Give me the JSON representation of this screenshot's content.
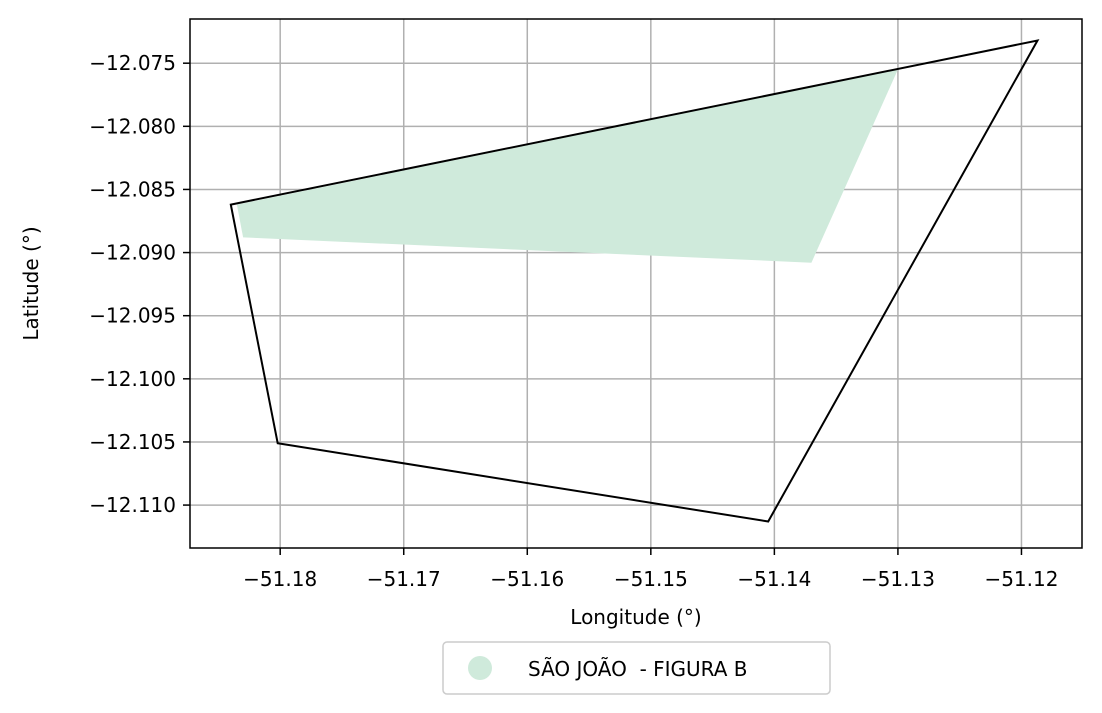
{
  "chart_data": {
    "type": "area",
    "title": "",
    "xlabel": "Longitude (°)",
    "ylabel": "Latitude (°)",
    "xlim": [
      -51.1873,
      -51.1151
    ],
    "ylim": [
      -12.1134,
      -12.0715
    ],
    "grid": true,
    "legend": {
      "placement": "bottom-center",
      "entries": [
        {
          "label": "SÃO JOÃO  - FIGURA B",
          "color": "#cfeadb",
          "marker": "circle"
        }
      ]
    },
    "x_ticks": [
      {
        "value": -51.18,
        "label": "−51.18"
      },
      {
        "value": -51.17,
        "label": "−51.17"
      },
      {
        "value": -51.16,
        "label": "−51.16"
      },
      {
        "value": -51.15,
        "label": "−51.15"
      },
      {
        "value": -51.14,
        "label": "−51.14"
      },
      {
        "value": -51.13,
        "label": "−51.13"
      },
      {
        "value": -51.12,
        "label": "−51.12"
      }
    ],
    "y_ticks": [
      {
        "value": -12.075,
        "label": "−12.075"
      },
      {
        "value": -12.08,
        "label": "−12.080"
      },
      {
        "value": -12.085,
        "label": "−12.085"
      },
      {
        "value": -12.09,
        "label": "−12.090"
      },
      {
        "value": -12.095,
        "label": "−12.095"
      },
      {
        "value": -12.1,
        "label": "−12.100"
      },
      {
        "value": -12.105,
        "label": "−12.105"
      },
      {
        "value": -12.11,
        "label": "−12.110"
      }
    ],
    "series": [
      {
        "name": "SÃO JOÃO  - FIGURA B",
        "kind": "filled-polygon",
        "color": "#cfeadb",
        "points": [
          [
            -51.1835,
            -12.0862
          ],
          [
            -51.13,
            -12.0755
          ],
          [
            -51.137,
            -12.0908
          ],
          [
            -51.183,
            -12.0888
          ]
        ]
      },
      {
        "kind": "outline-polygon",
        "color": "#000000",
        "points": [
          [
            -51.184,
            -12.0862
          ],
          [
            -51.1187,
            -12.0732
          ],
          [
            -51.1405,
            -12.1113
          ],
          [
            -51.1802,
            -12.1051
          ]
        ]
      }
    ]
  }
}
